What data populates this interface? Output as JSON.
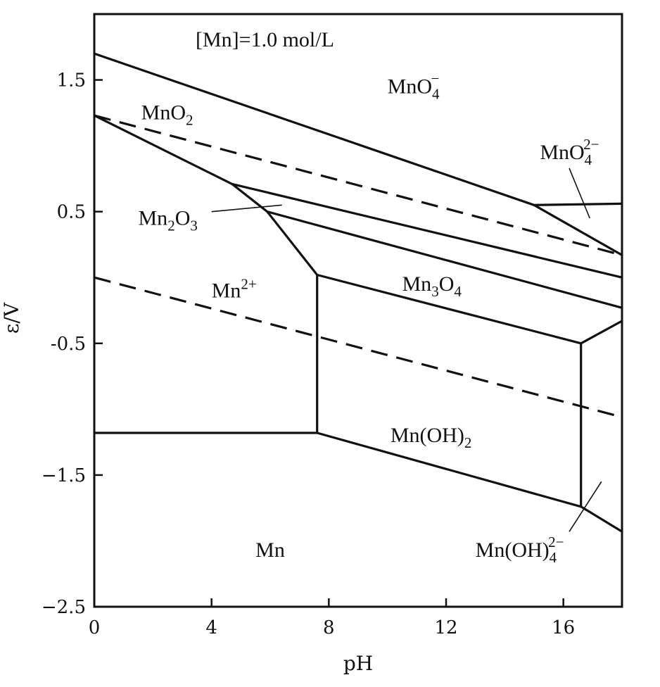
{
  "chart_data": {
    "type": "line",
    "xlabel": "pH",
    "ylabel": "ε/V",
    "xlim": [
      0,
      18
    ],
    "ylim": [
      -2.5,
      2.0
    ],
    "x_ticks": [
      0,
      4,
      8,
      12,
      16
    ],
    "x_tick_labels": [
      "0",
      "4",
      "8",
      "12",
      "16"
    ],
    "y_ticks": [
      1.5,
      0.5,
      -0.5,
      -1.5,
      -2.5
    ],
    "y_tick_labels": [
      "1.5",
      "0.5",
      "-0.5",
      "−1.5",
      "−2.5"
    ],
    "annotation": "[Mn]=1.0 mol/L",
    "regions": [
      {
        "label": "MnO4-",
        "at": [
          10.0,
          1.4
        ],
        "main": "MnO",
        "sub": "4",
        "sup": "−"
      },
      {
        "label": "MnO2",
        "at": [
          1.6,
          1.2
        ],
        "main": "MnO",
        "sub": "2",
        "sup": ""
      },
      {
        "label": "MnO42-",
        "at": [
          15.2,
          0.9
        ],
        "main": "MnO",
        "sub": "4",
        "sup": "2−"
      },
      {
        "label": "Mn2O3",
        "at": [
          1.5,
          0.4
        ],
        "main": "Mn",
        "sub": "2",
        "post": "O",
        "sub2": "3"
      },
      {
        "label": "Mn2+",
        "at": [
          4.0,
          -0.15
        ],
        "main": "Mn",
        "sup": "2+"
      },
      {
        "label": "Mn3O4",
        "at": [
          10.5,
          -0.1
        ],
        "main": "Mn",
        "sub": "3",
        "post": "O",
        "sub2": "4"
      },
      {
        "label": "Mn(OH)2",
        "at": [
          10.1,
          -1.25
        ],
        "main": "Mn(OH)",
        "sub": "2"
      },
      {
        "label": "Mn",
        "at": [
          5.5,
          -2.12
        ],
        "main": "Mn"
      },
      {
        "label": "Mn(OH)4 2-",
        "at": [
          13.0,
          -2.12
        ],
        "main": "Mn(OH)",
        "sub": "4",
        "sup": "2−"
      }
    ],
    "series": [
      {
        "id": "mno4-mno2",
        "style": "solid",
        "x": [
          0,
          15
        ],
        "y": [
          1.7,
          0.55
        ]
      },
      {
        "id": "mno4-mno42",
        "style": "solid",
        "x": [
          15,
          18
        ],
        "y": [
          0.55,
          0.56
        ]
      },
      {
        "id": "mno42-mno2",
        "style": "solid",
        "x": [
          15,
          18
        ],
        "y": [
          0.55,
          0.17
        ]
      },
      {
        "id": "mno2-mn2plus",
        "style": "solid",
        "x": [
          0,
          4.7
        ],
        "y": [
          1.23,
          0.71
        ]
      },
      {
        "id": "mno2-mn2o3",
        "style": "solid",
        "x": [
          4.7,
          18
        ],
        "y": [
          0.71,
          0.0
        ]
      },
      {
        "id": "mn2o3-mn2plus",
        "style": "solid",
        "x": [
          4.7,
          5.9,
          7.6
        ],
        "y": [
          0.71,
          0.5,
          0.02
        ]
      },
      {
        "id": "mn2o3-mn3o4",
        "style": "solid",
        "x": [
          5.9,
          18
        ],
        "y": [
          0.5,
          -0.23
        ]
      },
      {
        "id": "mn3o4-mn2plus",
        "style": "solid",
        "x": [
          7.6,
          7.6
        ],
        "y": [
          0.02,
          -1.18
        ]
      },
      {
        "id": "mn3o4-mnoh2",
        "style": "solid",
        "x": [
          7.6,
          16.6
        ],
        "y": [
          0.02,
          -0.5
        ]
      },
      {
        "id": "mn3o4-mnoh4",
        "style": "solid",
        "x": [
          16.6,
          18
        ],
        "y": [
          -0.5,
          -0.33
        ]
      },
      {
        "id": "mnoh2-mnoh4",
        "style": "solid",
        "x": [
          16.6,
          16.6
        ],
        "y": [
          -0.5,
          -1.74
        ]
      },
      {
        "id": "mn2plus-mn",
        "style": "solid",
        "x": [
          0,
          7.6
        ],
        "y": [
          -1.18,
          -1.18
        ]
      },
      {
        "id": "mnoh2-mn",
        "style": "solid",
        "x": [
          7.6,
          16.6
        ],
        "y": [
          -1.18,
          -1.74
        ]
      },
      {
        "id": "mnoh4-mn",
        "style": "solid",
        "x": [
          16.6,
          18
        ],
        "y": [
          -1.74,
          -1.93
        ]
      },
      {
        "id": "water-upper",
        "style": "dashed",
        "x": [
          0,
          18
        ],
        "y": [
          1.23,
          0.17
        ]
      },
      {
        "id": "water-lower",
        "style": "dashed",
        "x": [
          0,
          18
        ],
        "y": [
          0.0,
          -1.06
        ]
      },
      {
        "id": "leader-mno42",
        "style": "thin",
        "x": [
          16.2,
          16.9
        ],
        "y": [
          0.83,
          0.45
        ]
      },
      {
        "id": "leader-mn2o3",
        "style": "thin",
        "x": [
          4.0,
          6.4
        ],
        "y": [
          0.5,
          0.55
        ]
      },
      {
        "id": "leader-mnoh4",
        "style": "thin",
        "x": [
          16.2,
          17.3
        ],
        "y": [
          -1.93,
          -1.55
        ]
      }
    ]
  }
}
